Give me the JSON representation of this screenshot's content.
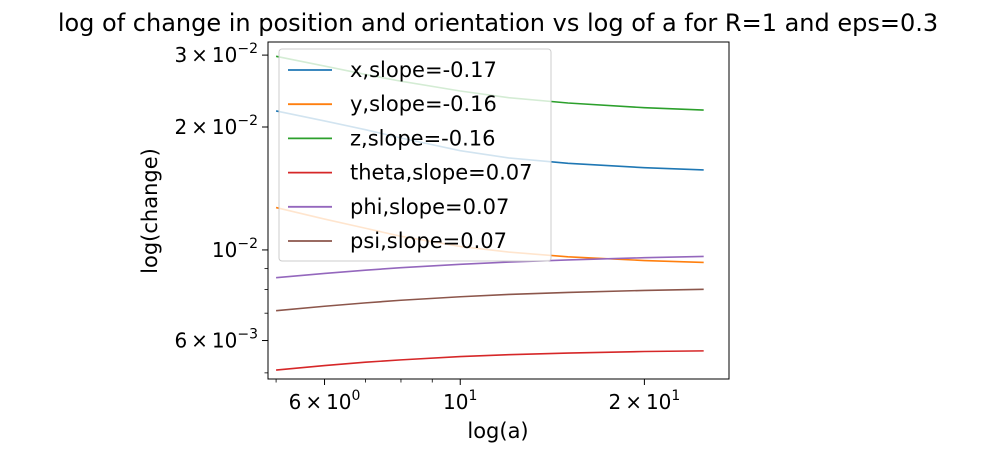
{
  "chart_data": {
    "type": "line",
    "title": "log of change in position and orientation vs log of a for R=1 and eps=0.3",
    "xlabel": "log(a)",
    "ylabel": "log(change)",
    "xscale": "log",
    "yscale": "log",
    "xlim": [
      4.85,
      27.5
    ],
    "ylim": [
      0.00483,
      0.0323
    ],
    "grid": false,
    "legend_position": "top-left",
    "x_ticks": [
      {
        "value": 6,
        "mantissa": "6",
        "exponent": "0",
        "times": true
      },
      {
        "value": 10,
        "mantissa": "10",
        "exponent": "1",
        "times": false
      },
      {
        "value": 20,
        "mantissa": "2",
        "exponent": "1",
        "times": true
      }
    ],
    "y_ticks": [
      {
        "value": 0.006,
        "mantissa": "6",
        "exponent": "−3",
        "times": true
      },
      {
        "value": 0.01,
        "mantissa": "10",
        "exponent": "−2",
        "times": false
      },
      {
        "value": 0.02,
        "mantissa": "2",
        "exponent": "−2",
        "times": true
      },
      {
        "value": 0.03,
        "mantissa": "3",
        "exponent": "−2",
        "times": true
      }
    ],
    "x": [
      5.0,
      6.0,
      7.0,
      8.0,
      10.0,
      12.0,
      15.0,
      20.0,
      25.0
    ],
    "series": [
      {
        "name": "x,slope=-0.17",
        "color": "#1f77b4",
        "values": [
          0.0219,
          0.0207,
          0.0197,
          0.0188,
          0.0175,
          0.0168,
          0.0163,
          0.0159,
          0.0157
        ]
      },
      {
        "name": "y,slope=-0.16",
        "color": "#ff7f0e",
        "values": [
          0.0127,
          0.0119,
          0.0113,
          0.0108,
          0.0102,
          0.00988,
          0.00962,
          0.00942,
          0.00932
        ]
      },
      {
        "name": "z,slope=-0.16",
        "color": "#2ca02c",
        "values": [
          0.0298,
          0.0282,
          0.0269,
          0.0259,
          0.0245,
          0.0236,
          0.0229,
          0.0223,
          0.022
        ]
      },
      {
        "name": "theta,slope=0.07",
        "color": "#d62728",
        "values": [
          0.00508,
          0.00521,
          0.00531,
          0.00538,
          0.00548,
          0.00554,
          0.00559,
          0.00564,
          0.00566
        ]
      },
      {
        "name": "phi,slope=0.07",
        "color": "#9467bd",
        "values": [
          0.00855,
          0.00876,
          0.00892,
          0.00905,
          0.00922,
          0.00934,
          0.00945,
          0.00957,
          0.00964
        ]
      },
      {
        "name": "psi,slope=0.07",
        "color": "#8c564b",
        "values": [
          0.0071,
          0.00728,
          0.00742,
          0.00753,
          0.00768,
          0.00778,
          0.00787,
          0.00796,
          0.00801
        ]
      }
    ]
  }
}
